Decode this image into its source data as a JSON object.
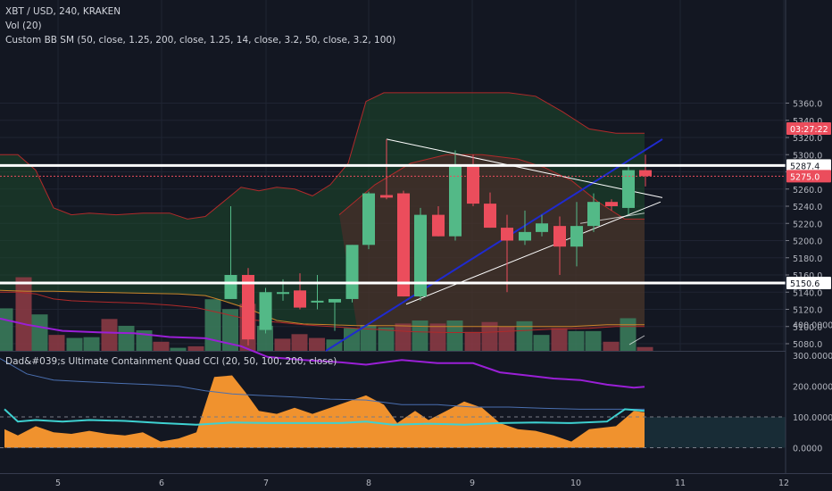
{
  "header": {
    "symbol": "XBT / USD, 240, KRAKEN",
    "vol": "Vol (20)",
    "bb": "Custom BB SM (50, close, 1.25, 200, close, 1.25, 14, close, 3.2, 50, close, 3.2, 100)",
    "cci": "Dad&#039;s Ultimate Containment Quad CCI (20, 50, 100, 200, close)"
  },
  "colors": {
    "bg": "#131722",
    "up": "#53b987",
    "down": "#eb4d5c",
    "grid": "#1f2433",
    "blue": "#1f2acf",
    "white": "#ffffff",
    "purple": "#9a1fd6",
    "cyan": "#3ed1d1",
    "orange": "#f0922e",
    "steelblue": "#4a6fb0"
  },
  "price_axis": {
    "ticks": [
      "5360.0",
      "5340.0",
      "5320.0",
      "5300.0",
      "5280.0",
      "5260.0",
      "5240.0",
      "5220.0",
      "5200.0",
      "5180.0",
      "5160.0",
      "5140.0",
      "5120.0",
      "5100.0",
      "5080.0"
    ],
    "badges": [
      {
        "text": "5287.4",
        "bg": "#ffffff",
        "fg": "#131722"
      },
      {
        "text": "5275.0",
        "bg": "#eb4d5c",
        "fg": "#ffffff"
      },
      {
        "text": "03:27:22",
        "bg": "#eb4d5c",
        "fg": "#ffffff"
      },
      {
        "text": "5150.6",
        "bg": "#ffffff",
        "fg": "#131722"
      }
    ]
  },
  "cci_axis": {
    "ticks": [
      "400.0000",
      "300.0000",
      "200.0000",
      "100.0000",
      "0.0000"
    ]
  },
  "time_axis": {
    "labels": [
      "5",
      "6",
      "7",
      "8",
      "9",
      "10",
      "11",
      "12"
    ]
  },
  "chart_data": {
    "type": "candlestick",
    "title": "XBT / USD, 240, KRAKEN",
    "price_ylim": [
      5075,
      5370
    ],
    "cci_ylim": [
      -60,
      410
    ],
    "horizontal_levels": [
      5287.4,
      5150.6
    ],
    "current_price": 5275.0,
    "candles": [
      {
        "x": 258.5,
        "o": 5132,
        "h": 5240,
        "l": 5132,
        "c": 5160
      },
      {
        "x": 278,
        "o": 5160,
        "h": 5168,
        "l": 5078,
        "c": 5085
      },
      {
        "x": 297.5,
        "o": 5096,
        "h": 5145,
        "l": 5092,
        "c": 5140
      },
      {
        "x": 317,
        "o": 5140,
        "h": 5155,
        "l": 5130,
        "c": 5140
      },
      {
        "x": 336,
        "o": 5142,
        "h": 5162,
        "l": 5120,
        "c": 5122
      },
      {
        "x": 355.5,
        "o": 5128,
        "h": 5160,
        "l": 5120,
        "c": 5130
      },
      {
        "x": 375,
        "o": 5128,
        "h": 5132,
        "l": 5095,
        "c": 5132
      },
      {
        "x": 394.5,
        "o": 5132,
        "h": 5195,
        "l": 5128,
        "c": 5195
      },
      {
        "x": 413,
        "o": 5195,
        "h": 5257,
        "l": 5190,
        "c": 5255
      },
      {
        "x": 433,
        "o": 5253,
        "h": 5318,
        "l": 5248,
        "c": 5250
      },
      {
        "x": 452,
        "o": 5255,
        "h": 5258,
        "l": 5135,
        "c": 5135
      },
      {
        "x": 471,
        "o": 5135,
        "h": 5238,
        "l": 5130,
        "c": 5230
      },
      {
        "x": 491,
        "o": 5230,
        "h": 5240,
        "l": 5205,
        "c": 5205
      },
      {
        "x": 510,
        "o": 5205,
        "h": 5305,
        "l": 5200,
        "c": 5288
      },
      {
        "x": 530,
        "o": 5288,
        "h": 5300,
        "l": 5240,
        "c": 5243
      },
      {
        "x": 549,
        "o": 5243,
        "h": 5256,
        "l": 5215,
        "c": 5215
      },
      {
        "x": 568,
        "o": 5215,
        "h": 5230,
        "l": 5140,
        "c": 5200
      },
      {
        "x": 588,
        "o": 5200,
        "h": 5235,
        "l": 5195,
        "c": 5210
      },
      {
        "x": 607,
        "o": 5210,
        "h": 5230,
        "l": 5205,
        "c": 5220
      },
      {
        "x": 627,
        "o": 5217,
        "h": 5228,
        "l": 5160,
        "c": 5193
      },
      {
        "x": 646,
        "o": 5193,
        "h": 5245,
        "l": 5170,
        "c": 5217
      },
      {
        "x": 665,
        "o": 5217,
        "h": 5255,
        "l": 5210,
        "c": 5245
      },
      {
        "x": 685,
        "o": 5245,
        "h": 5248,
        "l": 5235,
        "c": 5240
      },
      {
        "x": 704,
        "o": 5238,
        "h": 5288,
        "l": 5230,
        "c": 5282
      },
      {
        "x": 723,
        "o": 5282,
        "h": 5300,
        "l": 5263,
        "c": 5275
      }
    ],
    "volume": [
      {
        "x": 6,
        "v": 56,
        "up": true
      },
      {
        "x": 27,
        "v": 97,
        "up": false
      },
      {
        "x": 45,
        "v": 48,
        "up": true
      },
      {
        "x": 64,
        "v": 21,
        "up": false
      },
      {
        "x": 84,
        "v": 17,
        "up": true
      },
      {
        "x": 103,
        "v": 18,
        "up": true
      },
      {
        "x": 123,
        "v": 42,
        "up": false
      },
      {
        "x": 142,
        "v": 33,
        "up": true
      },
      {
        "x": 162,
        "v": 27,
        "up": true
      },
      {
        "x": 181,
        "v": 12,
        "up": false
      },
      {
        "x": 200,
        "v": 4,
        "up": true
      },
      {
        "x": 220,
        "v": 6,
        "up": false
      },
      {
        "x": 239,
        "v": 68,
        "up": true
      },
      {
        "x": 258.5,
        "v": 55,
        "up": true
      },
      {
        "x": 278,
        "v": 62,
        "up": false
      },
      {
        "x": 297.5,
        "v": 33,
        "up": true
      },
      {
        "x": 317,
        "v": 16,
        "up": false
      },
      {
        "x": 336,
        "v": 22,
        "up": false
      },
      {
        "x": 355.5,
        "v": 17,
        "up": false
      },
      {
        "x": 375,
        "v": 15,
        "up": true
      },
      {
        "x": 394.5,
        "v": 30,
        "up": true
      },
      {
        "x": 413,
        "v": 34,
        "up": true
      },
      {
        "x": 433,
        "v": 31,
        "up": true
      },
      {
        "x": 452,
        "v": 36,
        "up": false
      },
      {
        "x": 471,
        "v": 40,
        "up": true
      },
      {
        "x": 491,
        "v": 36,
        "up": false
      },
      {
        "x": 510,
        "v": 40,
        "up": true
      },
      {
        "x": 530,
        "v": 25,
        "up": false
      },
      {
        "x": 549,
        "v": 38,
        "up": false
      },
      {
        "x": 568,
        "v": 32,
        "up": false
      },
      {
        "x": 588,
        "v": 39,
        "up": true
      },
      {
        "x": 607,
        "v": 21,
        "up": true
      },
      {
        "x": 627,
        "v": 30,
        "up": false
      },
      {
        "x": 646,
        "v": 26,
        "up": true
      },
      {
        "x": 665,
        "v": 26,
        "up": true
      },
      {
        "x": 685,
        "v": 12,
        "up": false
      },
      {
        "x": 704,
        "v": 43,
        "up": true
      },
      {
        "x": 723,
        "v": 5,
        "up": false
      }
    ],
    "bb_upper": [
      [
        0,
        5300
      ],
      [
        20,
        5300
      ],
      [
        40,
        5282
      ],
      [
        60,
        5238
      ],
      [
        80,
        5230
      ],
      [
        100,
        5232
      ],
      [
        130,
        5230
      ],
      [
        160,
        5232
      ],
      [
        190,
        5232
      ],
      [
        210,
        5225
      ],
      [
        230,
        5228
      ],
      [
        250,
        5245
      ],
      [
        270,
        5262
      ],
      [
        290,
        5258
      ],
      [
        310,
        5262
      ],
      [
        330,
        5260
      ],
      [
        350,
        5252
      ],
      [
        370,
        5265
      ],
      [
        390,
        5290
      ],
      [
        410,
        5362
      ],
      [
        430,
        5372
      ],
      [
        460,
        5372
      ],
      [
        500,
        5372
      ],
      [
        540,
        5372
      ],
      [
        570,
        5372
      ],
      [
        600,
        5368
      ],
      [
        630,
        5350
      ],
      [
        660,
        5330
      ],
      [
        690,
        5325
      ],
      [
        722,
        5325
      ]
    ],
    "bb_lower": [
      [
        0,
        5140
      ],
      [
        20,
        5140
      ],
      [
        40,
        5138
      ],
      [
        60,
        5132
      ],
      [
        80,
        5130
      ],
      [
        100,
        5129
      ],
      [
        130,
        5128
      ],
      [
        160,
        5127
      ],
      [
        190,
        5125
      ],
      [
        220,
        5122
      ],
      [
        250,
        5115
      ],
      [
        280,
        5108
      ],
      [
        310,
        5105
      ],
      [
        340,
        5102
      ],
      [
        370,
        5100
      ],
      [
        400,
        5098
      ],
      [
        430,
        5096
      ],
      [
        460,
        5094
      ],
      [
        500,
        5093
      ],
      [
        540,
        5093
      ],
      [
        580,
        5095
      ],
      [
        620,
        5097
      ],
      [
        660,
        5098
      ],
      [
        690,
        5100
      ],
      [
        722,
        5100
      ]
    ],
    "band_lower": [
      [
        0,
        5142
      ],
      [
        30,
        5141
      ],
      [
        60,
        5141
      ],
      [
        100,
        5140
      ],
      [
        150,
        5139
      ],
      [
        200,
        5138
      ],
      [
        230,
        5136
      ],
      [
        250,
        5130
      ],
      [
        280,
        5120
      ],
      [
        310,
        5107
      ],
      [
        340,
        5103
      ],
      [
        370,
        5102
      ],
      [
        400,
        5101
      ],
      [
        440,
        5101
      ],
      [
        480,
        5100
      ],
      [
        520,
        5100
      ],
      [
        560,
        5100
      ],
      [
        600,
        5100
      ],
      [
        640,
        5100
      ],
      [
        680,
        5102
      ],
      [
        722,
        5102
      ]
    ],
    "cci": {
      "purple": [
        [
          0,
          420
        ],
        [
          30,
          400
        ],
        [
          70,
          380
        ],
        [
          110,
          375
        ],
        [
          150,
          372
        ],
        [
          190,
          360
        ],
        [
          230,
          356
        ],
        [
          270,
          330
        ],
        [
          300,
          295
        ],
        [
          340,
          285
        ],
        [
          380,
          278
        ],
        [
          410,
          270
        ],
        [
          450,
          285
        ],
        [
          490,
          275
        ],
        [
          530,
          275
        ],
        [
          560,
          245
        ],
        [
          590,
          235
        ],
        [
          620,
          225
        ],
        [
          650,
          220
        ],
        [
          680,
          205
        ],
        [
          710,
          195
        ],
        [
          722,
          198
        ]
      ],
      "steelblue": [
        [
          0,
          290
        ],
        [
          30,
          240
        ],
        [
          60,
          220
        ],
        [
          90,
          215
        ],
        [
          130,
          210
        ],
        [
          170,
          205
        ],
        [
          200,
          200
        ],
        [
          230,
          185
        ],
        [
          260,
          175
        ],
        [
          290,
          170
        ],
        [
          330,
          165
        ],
        [
          370,
          158
        ],
        [
          410,
          155
        ],
        [
          450,
          140
        ],
        [
          490,
          140
        ],
        [
          530,
          132
        ],
        [
          570,
          132
        ],
        [
          610,
          128
        ],
        [
          650,
          125
        ],
        [
          690,
          125
        ],
        [
          722,
          125
        ]
      ],
      "cyan": [
        [
          5,
          125
        ],
        [
          20,
          85
        ],
        [
          40,
          90
        ],
        [
          70,
          85
        ],
        [
          100,
          90
        ],
        [
          140,
          87
        ],
        [
          180,
          80
        ],
        [
          220,
          75
        ],
        [
          260,
          82
        ],
        [
          300,
          80
        ],
        [
          340,
          80
        ],
        [
          380,
          80
        ],
        [
          410,
          85
        ],
        [
          440,
          75
        ],
        [
          480,
          78
        ],
        [
          520,
          75
        ],
        [
          560,
          80
        ],
        [
          600,
          82
        ],
        [
          640,
          80
        ],
        [
          680,
          85
        ],
        [
          700,
          125
        ],
        [
          722,
          120
        ]
      ],
      "orange": [
        [
          5,
          60
        ],
        [
          20,
          40
        ],
        [
          40,
          70
        ],
        [
          60,
          50
        ],
        [
          80,
          45
        ],
        [
          100,
          55
        ],
        [
          120,
          45
        ],
        [
          140,
          40
        ],
        [
          160,
          50
        ],
        [
          180,
          20
        ],
        [
          200,
          30
        ],
        [
          220,
          50
        ],
        [
          240,
          230
        ],
        [
          260,
          235
        ],
        [
          275,
          180
        ],
        [
          290,
          120
        ],
        [
          310,
          110
        ],
        [
          330,
          130
        ],
        [
          350,
          110
        ],
        [
          370,
          130
        ],
        [
          390,
          150
        ],
        [
          410,
          170
        ],
        [
          430,
          140
        ],
        [
          445,
          80
        ],
        [
          465,
          120
        ],
        [
          480,
          90
        ],
        [
          500,
          120
        ],
        [
          520,
          150
        ],
        [
          540,
          130
        ],
        [
          560,
          80
        ],
        [
          580,
          60
        ],
        [
          600,
          55
        ],
        [
          620,
          40
        ],
        [
          640,
          20
        ],
        [
          660,
          60
        ],
        [
          690,
          70
        ],
        [
          710,
          120
        ],
        [
          722,
          115
        ]
      ]
    }
  }
}
